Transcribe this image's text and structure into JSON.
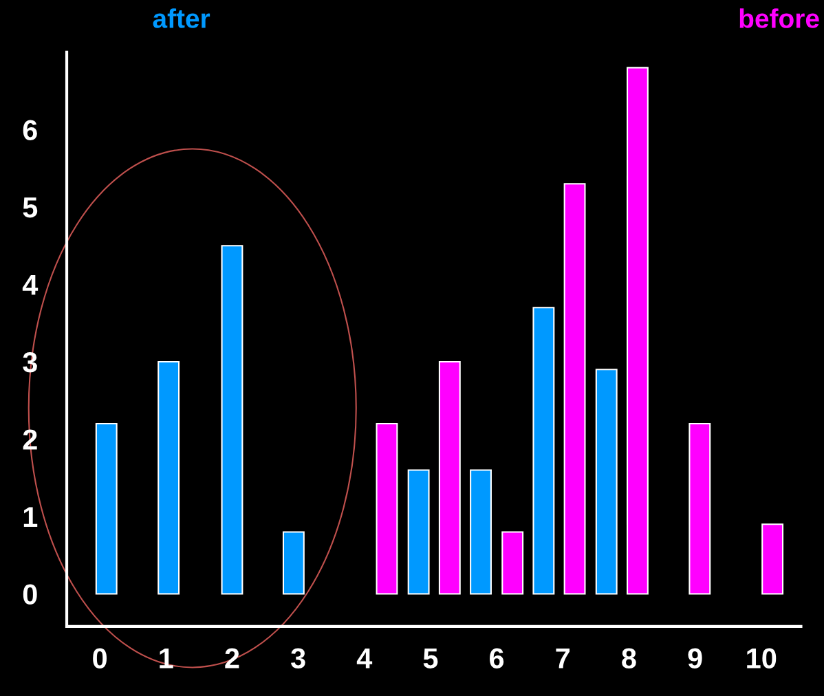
{
  "chart_data": {
    "type": "bar",
    "series": [
      {
        "name": "after",
        "color": "#0099ff",
        "x": [
          0.1,
          1.04,
          2.0,
          2.93,
          4.82,
          5.76,
          6.71,
          7.66
        ],
        "values": [
          2.2,
          3,
          4.5,
          0.8,
          1.6,
          1.6,
          3.7,
          2.9
        ]
      },
      {
        "name": "before",
        "color": "#ff00ff",
        "x": [
          4.34,
          5.29,
          6.24,
          7.18,
          8.13,
          9.07,
          10.17
        ],
        "values": [
          2.2,
          3,
          0.8,
          5.3,
          6.8,
          2.2,
          0.9
        ]
      }
    ],
    "xlim": [
      -0.5,
      10.6
    ],
    "xticks": [
      0,
      1,
      2,
      3,
      4,
      5,
      6,
      7,
      8,
      9,
      10
    ],
    "ylim": [
      -0.42,
      7
    ],
    "yticks": [
      0,
      1,
      2,
      3,
      4,
      5,
      6
    ],
    "grid": false,
    "legend": "top"
  }
}
